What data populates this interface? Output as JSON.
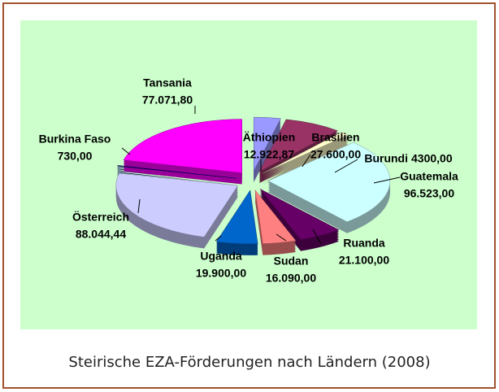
{
  "chart_data": {
    "type": "pie",
    "caption": "Steirische EZA-Förderungen nach Ländern (2008)",
    "categories": [
      "Äthiopien",
      "Brasilien",
      "Burundi",
      "Guatemala",
      "Ruanda",
      "Sudan",
      "Uganda",
      "Österreich",
      "Burkina Faso",
      "Tansania"
    ],
    "values": [
      12922.87,
      27600,
      4300,
      96523,
      21100,
      16090,
      19900,
      88044.44,
      730,
      77071.8
    ],
    "value_labels": [
      "12.922,87",
      "27.600,00",
      "4300,00",
      "96.523,00",
      "21.100,00",
      "16.090,00",
      "19.900,00",
      "88.044,44",
      "730,00",
      "77.071,80"
    ],
    "colors": [
      "#9999ff",
      "#993366",
      "#ffffcc",
      "#ccffff",
      "#660066",
      "#ff8080",
      "#0066cc",
      "#ccccff",
      "#000080",
      "#ff00ff"
    ]
  }
}
